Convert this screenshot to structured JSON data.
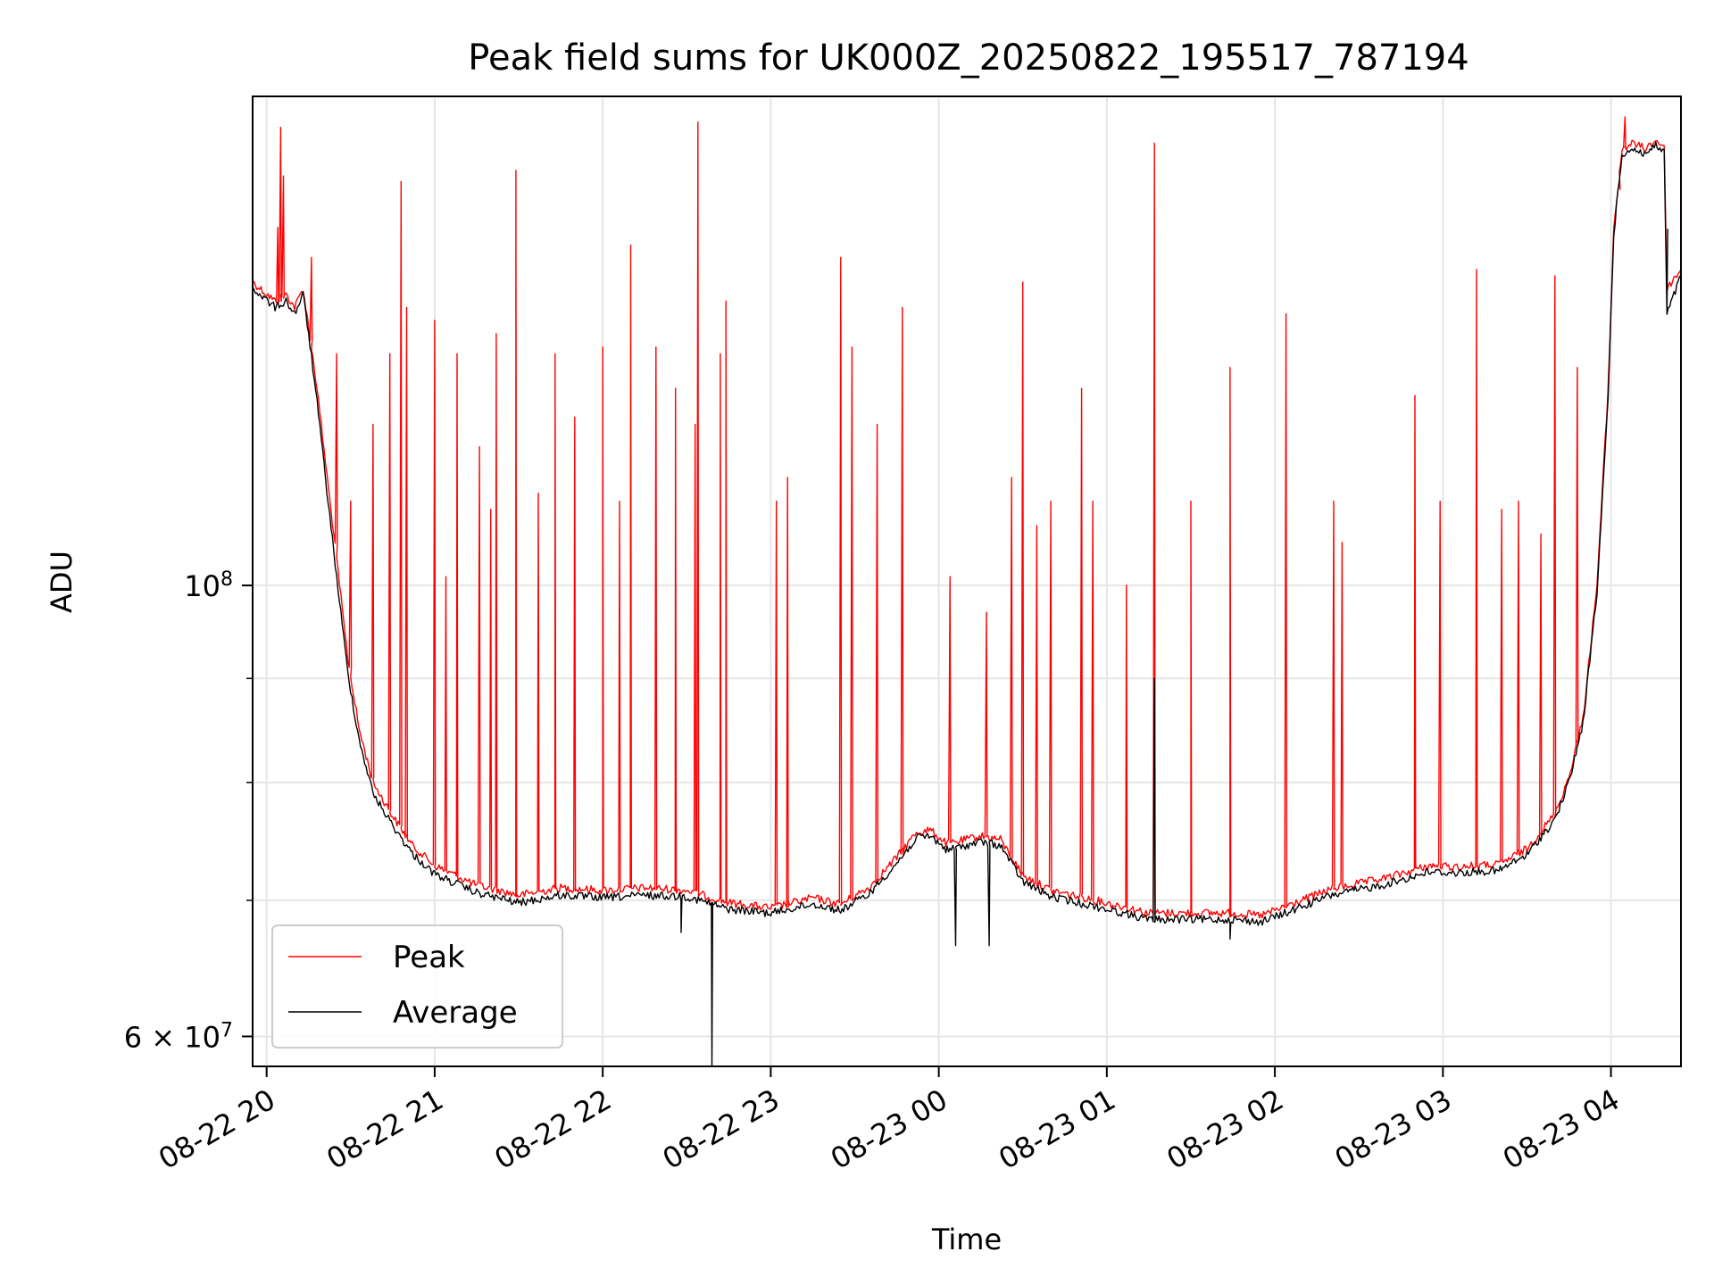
{
  "chart_data": {
    "type": "line",
    "title": "Peak field sums for UK000Z_20250822_195517_787194",
    "xlabel": "Time",
    "ylabel": "ADU",
    "yscale": "log",
    "grid": true,
    "legend_placement": "lower-left",
    "xlim": [
      "2025-08-22 19:55",
      "2025-08-23 04:25"
    ],
    "ylim": [
      58000000,
      174000000
    ],
    "x_ticks": [
      {
        "time": "2025-08-22 20:00",
        "label": "08-22 20"
      },
      {
        "time": "2025-08-22 21:00",
        "label": "08-22 21"
      },
      {
        "time": "2025-08-22 22:00",
        "label": "08-22 22"
      },
      {
        "time": "2025-08-22 23:00",
        "label": "08-22 23"
      },
      {
        "time": "2025-08-23 00:00",
        "label": "08-23 00"
      },
      {
        "time": "2025-08-23 01:00",
        "label": "08-23 01"
      },
      {
        "time": "2025-08-23 02:00",
        "label": "08-23 02"
      },
      {
        "time": "2025-08-23 03:00",
        "label": "08-23 03"
      },
      {
        "time": "2025-08-23 04:00",
        "label": "08-23 04"
      }
    ],
    "y_major_ticks": [
      {
        "value": 100000000,
        "base": "10",
        "exp": "8"
      },
      {
        "value": 60000000,
        "base": "6 × 10",
        "exp": "7"
      }
    ],
    "y_minor_ticks": [
      70000000,
      80000000,
      90000000
    ],
    "series": [
      {
        "name": "Peak",
        "color": "#ff0000",
        "baseline": [
          [
            "2025-08-22 19:55",
            141000000
          ],
          [
            "2025-08-22 20:03",
            138000000
          ],
          [
            "2025-08-22 20:07",
            139000000
          ],
          [
            "2025-08-22 20:10",
            137000000
          ],
          [
            "2025-08-22 20:13",
            140000000
          ],
          [
            "2025-08-22 20:15",
            134000000
          ],
          [
            "2025-08-22 20:18",
            125000000
          ],
          [
            "2025-08-22 20:21",
            115000000
          ],
          [
            "2025-08-22 20:25",
            103000000
          ],
          [
            "2025-08-22 20:29",
            92000000
          ],
          [
            "2025-08-22 20:33",
            85000000
          ],
          [
            "2025-08-22 20:38",
            80000000
          ],
          [
            "2025-08-22 20:45",
            77000000
          ],
          [
            "2025-08-22 20:52",
            74500000
          ],
          [
            "2025-08-22 21:00",
            72800000
          ],
          [
            "2025-08-22 21:15",
            71200000
          ],
          [
            "2025-08-22 21:30",
            70400000
          ],
          [
            "2025-08-22 21:45",
            71000000
          ],
          [
            "2025-08-22 22:00",
            70800000
          ],
          [
            "2025-08-22 22:15",
            71000000
          ],
          [
            "2025-08-22 22:30",
            70800000
          ],
          [
            "2025-08-22 22:45",
            69800000
          ],
          [
            "2025-08-22 23:00",
            69400000
          ],
          [
            "2025-08-22 23:15",
            70200000
          ],
          [
            "2025-08-22 23:25",
            69700000
          ],
          [
            "2025-08-22 23:35",
            71000000
          ],
          [
            "2025-08-22 23:45",
            73500000
          ],
          [
            "2025-08-22 23:52",
            75600000
          ],
          [
            "2025-08-22 23:57",
            75800000
          ],
          [
            "2025-08-23 00:03",
            74600000
          ],
          [
            "2025-08-23 00:10",
            75000000
          ],
          [
            "2025-08-23 00:15",
            75300000
          ],
          [
            "2025-08-23 00:22",
            75000000
          ],
          [
            "2025-08-23 00:30",
            72000000
          ],
          [
            "2025-08-23 00:40",
            70800000
          ],
          [
            "2025-08-23 00:50",
            70300000
          ],
          [
            "2025-08-23 01:00",
            69800000
          ],
          [
            "2025-08-23 01:15",
            69000000
          ],
          [
            "2025-08-23 01:30",
            69000000
          ],
          [
            "2025-08-23 01:45",
            69000000
          ],
          [
            "2025-08-23 01:55",
            68800000
          ],
          [
            "2025-08-23 02:05",
            69600000
          ],
          [
            "2025-08-23 02:20",
            70900000
          ],
          [
            "2025-08-23 02:40",
            71800000
          ],
          [
            "2025-08-23 02:55",
            72800000
          ],
          [
            "2025-08-23 03:05",
            72700000
          ],
          [
            "2025-08-23 03:20",
            72900000
          ],
          [
            "2025-08-23 03:30",
            74200000
          ],
          [
            "2025-08-23 03:40",
            77200000
          ],
          [
            "2025-08-23 03:45",
            80500000
          ],
          [
            "2025-08-23 03:50",
            86000000
          ],
          [
            "2025-08-23 03:55",
            100000000
          ],
          [
            "2025-08-23 03:59",
            125000000
          ],
          [
            "2025-08-23 04:01",
            150000000
          ],
          [
            "2025-08-23 04:04",
            164000000
          ],
          [
            "2025-08-23 04:08",
            165000000
          ],
          [
            "2025-08-23 04:12",
            164000000
          ],
          [
            "2025-08-23 04:16",
            165500000
          ],
          [
            "2025-08-23 04:19",
            164500000
          ],
          [
            "2025-08-23 04:20",
            140000000
          ],
          [
            "2025-08-23 04:25",
            143000000
          ]
        ],
        "spikes": [
          [
            "2025-08-22 20:05",
            168000000
          ],
          [
            "2025-08-22 20:04",
            150000000
          ],
          [
            "2025-08-22 20:06",
            159000000
          ],
          [
            "2025-08-22 20:16",
            145000000
          ],
          [
            "2025-08-22 20:25",
            130000000
          ],
          [
            "2025-08-22 20:30",
            110000000
          ],
          [
            "2025-08-22 20:38",
            120000000
          ],
          [
            "2025-08-22 20:44",
            130000000
          ],
          [
            "2025-08-22 20:48",
            158000000
          ],
          [
            "2025-08-22 20:50",
            137000000
          ],
          [
            "2025-08-22 21:00",
            135000000
          ],
          [
            "2025-08-22 21:04",
            101000000
          ],
          [
            "2025-08-22 21:08",
            130000000
          ],
          [
            "2025-08-22 21:16",
            117000000
          ],
          [
            "2025-08-22 21:20",
            109000000
          ],
          [
            "2025-08-22 21:22",
            133000000
          ],
          [
            "2025-08-22 21:29",
            160000000
          ],
          [
            "2025-08-22 21:37",
            111000000
          ],
          [
            "2025-08-22 21:43",
            130000000
          ],
          [
            "2025-08-22 21:50",
            121000000
          ],
          [
            "2025-08-22 22:00",
            131000000
          ],
          [
            "2025-08-22 22:06",
            110000000
          ],
          [
            "2025-08-22 22:10",
            147000000
          ],
          [
            "2025-08-22 22:19",
            131000000
          ],
          [
            "2025-08-22 22:26",
            125000000
          ],
          [
            "2025-08-22 22:33",
            120000000
          ],
          [
            "2025-08-22 22:34",
            169000000
          ],
          [
            "2025-08-22 22:42",
            130000000
          ],
          [
            "2025-08-22 22:44",
            138000000
          ],
          [
            "2025-08-22 23:02",
            110000000
          ],
          [
            "2025-08-22 23:06",
            113000000
          ],
          [
            "2025-08-22 23:25",
            145000000
          ],
          [
            "2025-08-22 23:29",
            131000000
          ],
          [
            "2025-08-22 23:38",
            120000000
          ],
          [
            "2025-08-22 23:47",
            137000000
          ],
          [
            "2025-08-23 00:04",
            101000000
          ],
          [
            "2025-08-23 00:17",
            97000000
          ],
          [
            "2025-08-23 00:26",
            113000000
          ],
          [
            "2025-08-23 00:30",
            141000000
          ],
          [
            "2025-08-23 00:35",
            107000000
          ],
          [
            "2025-08-23 00:40",
            110000000
          ],
          [
            "2025-08-23 00:51",
            125000000
          ],
          [
            "2025-08-23 00:55",
            110000000
          ],
          [
            "2025-08-23 01:07",
            100000000
          ],
          [
            "2025-08-23 01:17",
            165000000
          ],
          [
            "2025-08-23 01:30",
            110000000
          ],
          [
            "2025-08-23 01:44",
            128000000
          ],
          [
            "2025-08-23 02:04",
            136000000
          ],
          [
            "2025-08-23 02:21",
            110000000
          ],
          [
            "2025-08-23 02:24",
            105000000
          ],
          [
            "2025-08-23 02:50",
            124000000
          ],
          [
            "2025-08-23 02:59",
            110000000
          ],
          [
            "2025-08-23 03:12",
            143000000
          ],
          [
            "2025-08-23 03:21",
            109000000
          ],
          [
            "2025-08-23 03:27",
            110000000
          ],
          [
            "2025-08-23 03:35",
            106000000
          ],
          [
            "2025-08-23 03:40",
            142000000
          ],
          [
            "2025-08-23 03:48",
            128000000
          ],
          [
            "2025-08-23 04:05",
            170000000
          ],
          [
            "2025-08-23 04:03",
            158000000
          ]
        ]
      },
      {
        "name": "Average",
        "color": "#000000",
        "baseline": [
          [
            "2025-08-22 19:55",
            140000000
          ],
          [
            "2025-08-22 20:03",
            137000000
          ],
          [
            "2025-08-22 20:07",
            138000000
          ],
          [
            "2025-08-22 20:10",
            136000000
          ],
          [
            "2025-08-22 20:13",
            139000000
          ],
          [
            "2025-08-22 20:15",
            133000000
          ],
          [
            "2025-08-22 20:18",
            123000000
          ],
          [
            "2025-08-22 20:21",
            113000000
          ],
          [
            "2025-08-22 20:25",
            101000000
          ],
          [
            "2025-08-22 20:29",
            90500000
          ],
          [
            "2025-08-22 20:33",
            84000000
          ],
          [
            "2025-08-22 20:38",
            79000000
          ],
          [
            "2025-08-22 20:45",
            76200000
          ],
          [
            "2025-08-22 20:52",
            73800000
          ],
          [
            "2025-08-22 21:00",
            72100000
          ],
          [
            "2025-08-22 21:15",
            70600000
          ],
          [
            "2025-08-22 21:30",
            69800000
          ],
          [
            "2025-08-22 21:45",
            70400000
          ],
          [
            "2025-08-22 22:00",
            70200000
          ],
          [
            "2025-08-22 22:15",
            70400000
          ],
          [
            "2025-08-22 22:30",
            70300000
          ],
          [
            "2025-08-22 22:45",
            69300000
          ],
          [
            "2025-08-22 23:00",
            69000000
          ],
          [
            "2025-08-22 23:15",
            69700000
          ],
          [
            "2025-08-22 23:25",
            69200000
          ],
          [
            "2025-08-22 23:35",
            70500000
          ],
          [
            "2025-08-22 23:45",
            73000000
          ],
          [
            "2025-08-22 23:52",
            75100000
          ],
          [
            "2025-08-22 23:57",
            75300000
          ],
          [
            "2025-08-23 00:03",
            74100000
          ],
          [
            "2025-08-23 00:10",
            74500000
          ],
          [
            "2025-08-23 00:15",
            74800000
          ],
          [
            "2025-08-23 00:22",
            74500000
          ],
          [
            "2025-08-23 00:30",
            71500000
          ],
          [
            "2025-08-23 00:40",
            70300000
          ],
          [
            "2025-08-23 00:50",
            69800000
          ],
          [
            "2025-08-23 01:00",
            69300000
          ],
          [
            "2025-08-23 01:15",
            68500000
          ],
          [
            "2025-08-23 01:30",
            68500000
          ],
          [
            "2025-08-23 01:45",
            68500000
          ],
          [
            "2025-08-23 01:55",
            68300000
          ],
          [
            "2025-08-23 02:05",
            69100000
          ],
          [
            "2025-08-23 02:20",
            70400000
          ],
          [
            "2025-08-23 02:40",
            71300000
          ],
          [
            "2025-08-23 02:55",
            72300000
          ],
          [
            "2025-08-23 03:05",
            72200000
          ],
          [
            "2025-08-23 03:20",
            72400000
          ],
          [
            "2025-08-23 03:30",
            73700000
          ],
          [
            "2025-08-23 03:40",
            76700000
          ],
          [
            "2025-08-23 03:45",
            80000000
          ],
          [
            "2025-08-23 03:50",
            85500000
          ],
          [
            "2025-08-23 03:55",
            99000000
          ],
          [
            "2025-08-23 03:59",
            124000000
          ],
          [
            "2025-08-23 04:01",
            149000000
          ],
          [
            "2025-08-23 04:04",
            163000000
          ],
          [
            "2025-08-23 04:08",
            164000000
          ],
          [
            "2025-08-23 04:12",
            163000000
          ],
          [
            "2025-08-23 04:16",
            164500000
          ],
          [
            "2025-08-23 04:19",
            163500000
          ],
          [
            "2025-08-23 04:20",
            136000000
          ],
          [
            "2025-08-23 04:25",
            142000000
          ]
        ],
        "spikes": [
          [
            "2025-08-22 22:39",
            58000000
          ],
          [
            "2025-08-22 22:28",
            67500000
          ],
          [
            "2025-08-23 00:06",
            66500000
          ],
          [
            "2025-08-23 00:18",
            66500000
          ],
          [
            "2025-08-23 01:17",
            90000000
          ],
          [
            "2025-08-23 01:44",
            67000000
          ],
          [
            "2025-08-23 04:20",
            136000000
          ]
        ]
      }
    ]
  }
}
